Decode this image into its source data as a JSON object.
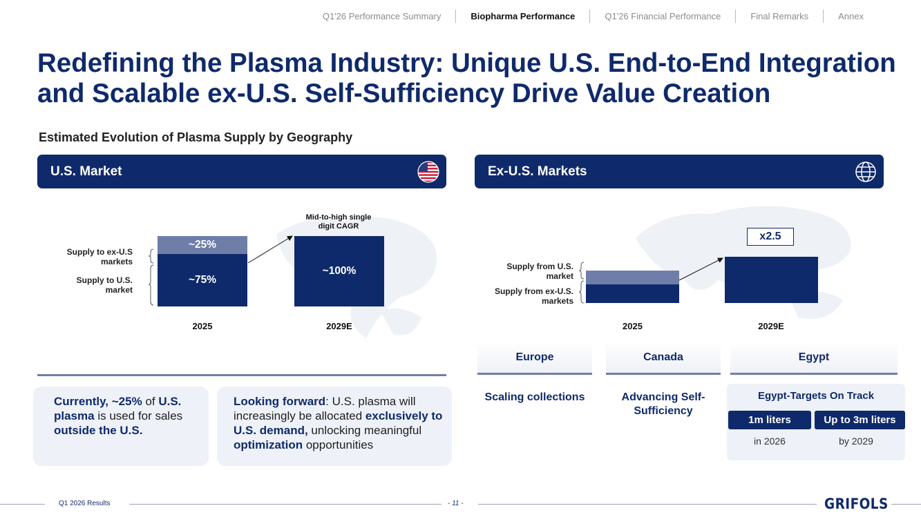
{
  "nav": {
    "items": [
      {
        "label": "Q1'26 Performance Summary",
        "active": false
      },
      {
        "label": "Biopharma Performance",
        "active": true
      },
      {
        "label": "Q1'26 Financial Performance",
        "active": false
      },
      {
        "label": "Final Remarks",
        "active": false
      },
      {
        "label": "Annex",
        "active": false
      }
    ]
  },
  "title_line1": "Redefining the Plasma Industry: Unique U.S. End-to-End Integration",
  "title_line2": "and Scalable ex-U.S. Self-Sufficiency Drive Value Creation",
  "subtitle": "Estimated Evolution of Plasma Supply by Geography",
  "us_panel": {
    "header": "U.S. Market",
    "icon": "us-flag-icon",
    "chart_data": {
      "type": "bar",
      "categories": [
        "2025",
        "2029E"
      ],
      "series": [
        {
          "name": "Supply to U.S. market",
          "values": [
            75,
            100
          ],
          "labels": [
            "~75%",
            "~100%"
          ]
        },
        {
          "name": "Supply to ex-U.S markets",
          "values": [
            25,
            0
          ],
          "labels": [
            "~25%",
            ""
          ]
        }
      ],
      "annotation": "Mid-to-high single digit CAGR"
    },
    "side_labels": {
      "top": "Supply to ex-U.S markets",
      "bottom": "Supply to U.S. market"
    },
    "cards": [
      {
        "parts": [
          {
            "text": "Currently, ~25%",
            "hl": true
          },
          {
            "text": " of ",
            "hl": false
          },
          {
            "text": "U.S. plasma",
            "hl": true
          },
          {
            "text": " is used for sales ",
            "hl": false
          },
          {
            "text": "outside the U.S.",
            "hl": true
          }
        ]
      },
      {
        "parts": [
          {
            "text": "Looking forward",
            "hl": true
          },
          {
            "text": ": U.S. plasma will increasingly be allocated ",
            "hl": false
          },
          {
            "text": "exclusively to U.S. demand,",
            "hl": true
          },
          {
            "text": " unlocking meaningful ",
            "hl": false
          },
          {
            "text": "optimization",
            "hl": true
          },
          {
            "text": " opportunities",
            "hl": false
          }
        ]
      }
    ]
  },
  "ex_panel": {
    "header": "Ex-U.S. Markets",
    "icon": "globe-icon",
    "chart_data": {
      "type": "bar",
      "categories": [
        "2025",
        "2029E"
      ],
      "series": [
        {
          "name": "Supply from ex-U.S. markets",
          "values": [
            1,
            2.5
          ]
        },
        {
          "name": "Supply from U.S. market",
          "values": [
            0.75,
            0
          ]
        }
      ],
      "annotation": "x2.5"
    },
    "side_labels": {
      "top": "Supply from U.S. market",
      "bottom": "Supply from ex-U.S. markets"
    },
    "regions": [
      {
        "name": "Europe",
        "text": "Scaling collections"
      },
      {
        "name": "Canada",
        "text": "Advancing Self-Sufficiency"
      },
      {
        "name": "Egypt",
        "text": "Egypt-Targets On Track"
      }
    ],
    "egypt_targets": [
      {
        "value": "1m liters",
        "when": "in 2026"
      },
      {
        "value": "Up to 3m liters",
        "when": "by 2029"
      }
    ]
  },
  "footer": {
    "left": "Q1 2026 Results",
    "page": "- 11 -",
    "logo": "GRIFOLS"
  },
  "colors": {
    "navy": "#0f2a6b",
    "light_navy": "#6f7ea8",
    "card_bg": "#eef1f7"
  }
}
